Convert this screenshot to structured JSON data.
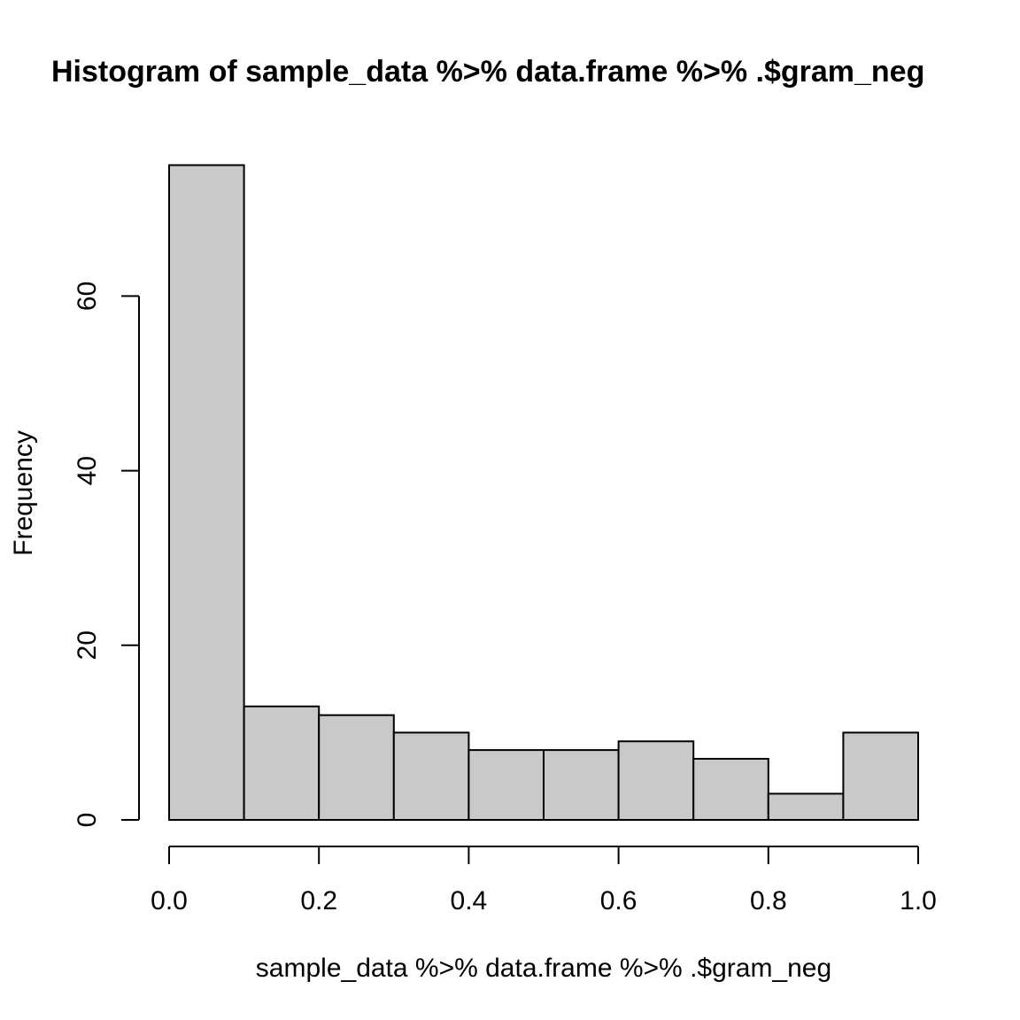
{
  "chart_data": {
    "type": "bar",
    "title": "Histogram of sample_data %>% data.frame %>% .$gram_neg",
    "xlabel": "sample_data %>% data.frame %>% .$gram_neg",
    "ylabel": "Frequency",
    "bin_edges": [
      0.0,
      0.1,
      0.2,
      0.3,
      0.4,
      0.5,
      0.6,
      0.7,
      0.8,
      0.9,
      1.0
    ],
    "values": [
      75,
      13,
      12,
      10,
      8,
      8,
      9,
      7,
      3,
      10
    ],
    "xlim": [
      0.0,
      1.0
    ],
    "ylim": [
      0,
      75
    ],
    "x_ticks": [
      {
        "value": 0.0,
        "label": "0.0"
      },
      {
        "value": 0.2,
        "label": "0.2"
      },
      {
        "value": 0.4,
        "label": "0.4"
      },
      {
        "value": 0.6,
        "label": "0.6"
      },
      {
        "value": 0.8,
        "label": "0.8"
      },
      {
        "value": 1.0,
        "label": "1.0"
      }
    ],
    "y_ticks": [
      {
        "value": 0,
        "label": "0"
      },
      {
        "value": 20,
        "label": "20"
      },
      {
        "value": 40,
        "label": "40"
      },
      {
        "value": 60,
        "label": "60"
      }
    ],
    "grid": false,
    "bar_fill": "#c9c9c9",
    "bar_stroke": "#000000"
  }
}
